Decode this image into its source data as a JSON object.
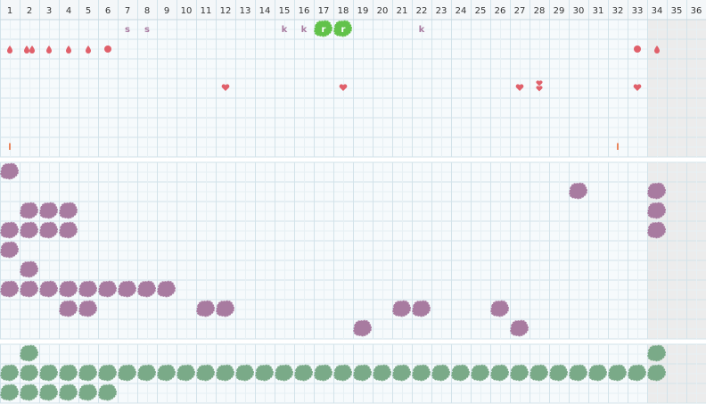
{
  "header": {
    "days": [
      1,
      2,
      3,
      4,
      5,
      6,
      7,
      8,
      9,
      10,
      11,
      12,
      13,
      14,
      15,
      16,
      17,
      18,
      19,
      20,
      21,
      22,
      23,
      24,
      25,
      26,
      27,
      28,
      29,
      30,
      31,
      32,
      33,
      34,
      35,
      36
    ]
  },
  "tracker": {
    "labels": [
      "s",
      "s",
      "k",
      "k",
      "r",
      "r",
      "k",
      "l",
      "l"
    ]
  }
}
